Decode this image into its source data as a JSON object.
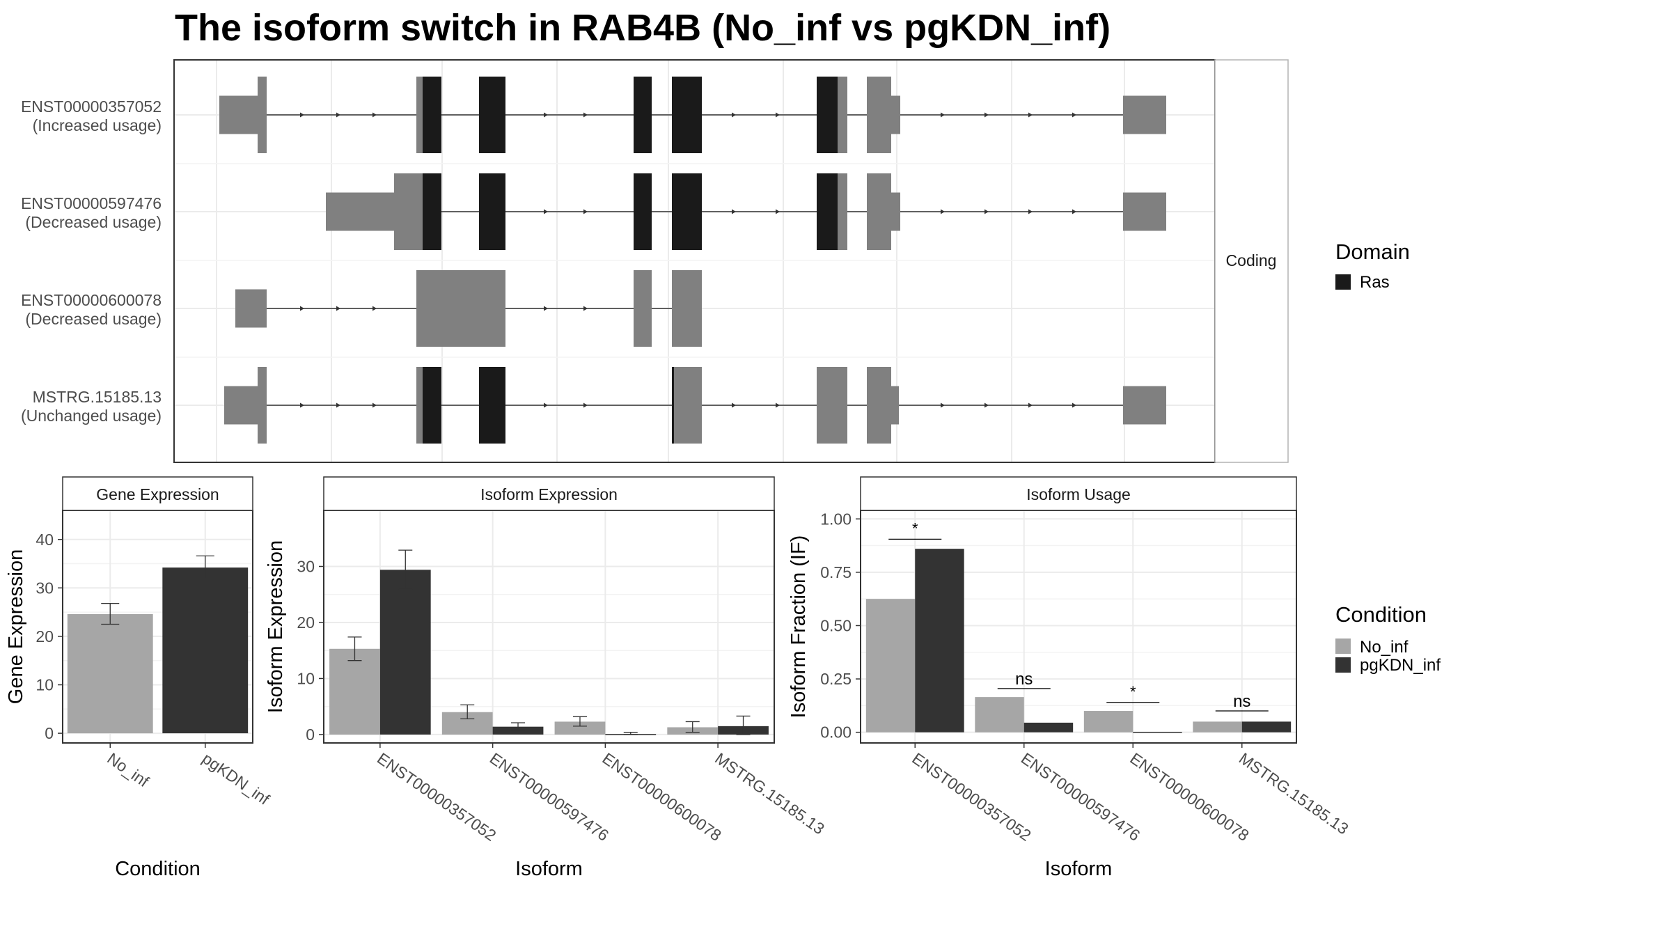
{
  "title": "The isoform switch in RAB4B (No_inf vs pgKDN_inf)",
  "structure": {
    "strip_label": "Coding",
    "legend_title": "Domain",
    "legend_items": [
      {
        "label": "Ras",
        "color": "#1a1a1a"
      }
    ],
    "colors": {
      "utr": "#808080",
      "domain": "#1a1a1a",
      "intron": "#333333"
    },
    "isoforms": [
      {
        "name": "ENST00000357052",
        "usage": "(Increased usage)"
      },
      {
        "name": "ENST00000597476",
        "usage": "(Decreased usage)"
      },
      {
        "name": "ENST00000600078",
        "usage": "(Decreased usage)"
      },
      {
        "name": "MSTRG.15185.13",
        "usage": "(Unchanged usage)"
      }
    ]
  },
  "condition_legend": {
    "title": "Condition",
    "items": [
      {
        "label": "No_inf",
        "color": "#a6a6a6"
      },
      {
        "label": "pgKDN_inf",
        "color": "#333333"
      }
    ]
  },
  "chart_data": [
    {
      "type": "bar",
      "title": "Gene Expression",
      "xlabel": "Condition",
      "ylabel": "Gene Expression",
      "categories": [
        "No_inf",
        "pgKDN_inf"
      ],
      "values": [
        24.6,
        34.2
      ],
      "errors": [
        [
          22.5,
          26.8
        ],
        [
          31.9,
          36.6
        ]
      ],
      "colors": [
        "#a6a6a6",
        "#333333"
      ],
      "ylim": [
        -2,
        46
      ],
      "yticks": [
        0,
        10,
        20,
        30,
        40
      ],
      "ytick_labels": [
        "0",
        "10",
        "20",
        "30",
        "40"
      ]
    },
    {
      "type": "bar",
      "title": "Isoform Expression",
      "xlabel": "Isoform",
      "ylabel": "Isoform Expression",
      "categories": [
        "ENST00000357052",
        "ENST00000597476",
        "ENST00000600078",
        "MSTRG.15185.13"
      ],
      "series": [
        {
          "name": "No_inf",
          "values": [
            15.3,
            4.0,
            2.3,
            1.3
          ],
          "errors": [
            [
              13.2,
              17.4
            ],
            [
              2.8,
              5.3
            ],
            [
              1.5,
              3.2
            ],
            [
              0.4,
              2.3
            ]
          ]
        },
        {
          "name": "pgKDN_inf",
          "values": [
            29.4,
            1.4,
            0.1,
            1.5
          ],
          "errors": [
            [
              25.9,
              32.9
            ],
            [
              0.8,
              2.1
            ],
            [
              0.0,
              0.4
            ],
            [
              0.0,
              3.3
            ]
          ]
        }
      ],
      "colors": [
        "#a6a6a6",
        "#333333"
      ],
      "ylim": [
        -1.5,
        40
      ],
      "yticks": [
        0,
        10,
        20,
        30
      ],
      "ytick_labels": [
        "0",
        "10",
        "20",
        "30"
      ]
    },
    {
      "type": "bar",
      "title": "Isoform Usage",
      "xlabel": "Isoform",
      "ylabel": "Isoform Fraction (IF)",
      "categories": [
        "ENST00000357052",
        "ENST00000597476",
        "ENST00000600078",
        "MSTRG.15185.13"
      ],
      "series": [
        {
          "name": "No_inf",
          "values": [
            0.625,
            0.165,
            0.1,
            0.05
          ]
        },
        {
          "name": "pgKDN_inf",
          "values": [
            0.86,
            0.045,
            0.002,
            0.05
          ]
        }
      ],
      "colors": [
        "#a6a6a6",
        "#333333"
      ],
      "significance": [
        "*",
        "ns",
        "*",
        "ns"
      ],
      "sig_levels": [
        0.905,
        0.205,
        0.14,
        0.1
      ],
      "ylim": [
        -0.05,
        1.04
      ],
      "yticks": [
        0,
        0.25,
        0.5,
        0.75,
        1.0
      ],
      "ytick_labels": [
        "0.00",
        "0.25",
        "0.50",
        "0.75",
        "1.00"
      ]
    }
  ]
}
